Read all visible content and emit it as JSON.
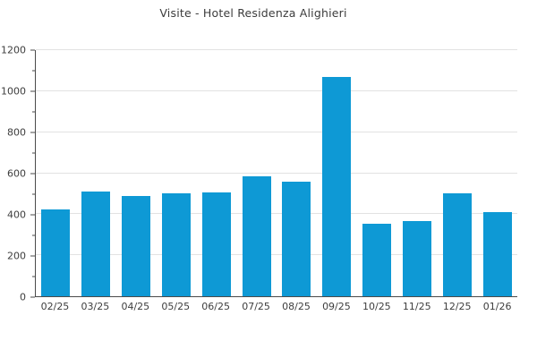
{
  "chart_data": {
    "type": "bar",
    "title": "Visite - Hotel Residenza Alighieri",
    "categories": [
      "02/25",
      "03/25",
      "04/25",
      "05/25",
      "06/25",
      "07/25",
      "08/25",
      "09/25",
      "10/25",
      "11/25",
      "12/25",
      "01/26"
    ],
    "values": [
      425,
      512,
      487,
      503,
      508,
      583,
      560,
      1070,
      355,
      367,
      500,
      412
    ],
    "xlabel": "",
    "ylabel": "",
    "ylim": [
      0,
      1200
    ],
    "ytick_step": 200,
    "ytick_labels": [
      "0",
      "200",
      "400",
      "600",
      "800",
      "1000",
      "1200"
    ],
    "y_minor_step": 100,
    "grid": true,
    "legend": false,
    "colors": {
      "bar": "#0E99D5",
      "gridline": "#E2E2E2",
      "axis": "#4A4A4A",
      "text": "#3D3D3D",
      "background": "#FFFFFF"
    }
  }
}
